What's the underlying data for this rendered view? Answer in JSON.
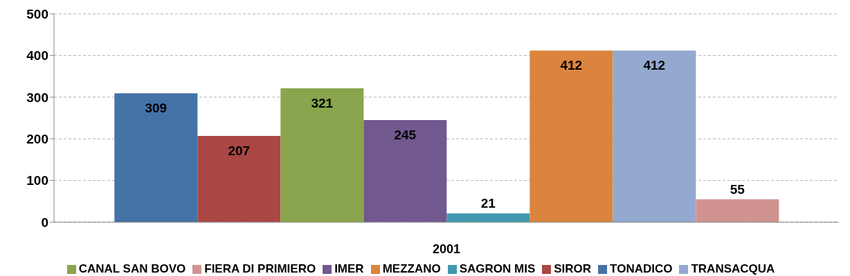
{
  "chart_data": {
    "type": "bar",
    "categories": [
      "2001"
    ],
    "series": [
      {
        "name": "TONADICO",
        "color": "#4572a7",
        "values": [
          309
        ]
      },
      {
        "name": "SIROR",
        "color": "#aa4643",
        "values": [
          207
        ]
      },
      {
        "name": "CANAL SAN BOVO",
        "color": "#89a54e",
        "values": [
          321
        ]
      },
      {
        "name": "IMER",
        "color": "#71588f",
        "values": [
          245
        ]
      },
      {
        "name": "SAGRON MIS",
        "color": "#4198af",
        "values": [
          21
        ]
      },
      {
        "name": "MEZZANO",
        "color": "#db843d",
        "values": [
          412
        ]
      },
      {
        "name": "TRANSACQUA",
        "color": "#93a9cf",
        "values": [
          412
        ]
      },
      {
        "name": "FIERA DI PRIMIERO",
        "color": "#d19392",
        "values": [
          55
        ]
      }
    ],
    "ylim": [
      0,
      500
    ],
    "yticks": [
      0,
      100,
      200,
      300,
      400,
      500
    ],
    "grid": "y",
    "legend": "bottom",
    "data_labels": true
  }
}
